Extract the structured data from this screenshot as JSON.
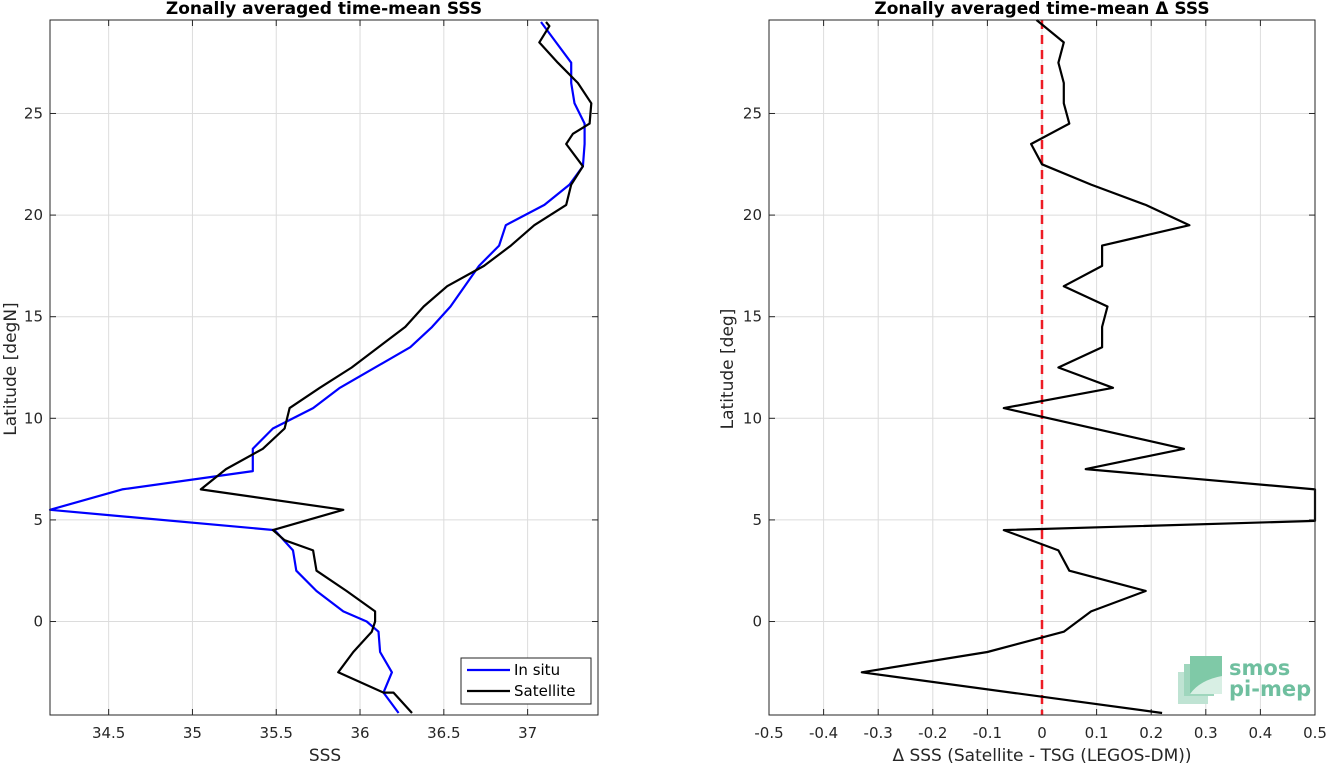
{
  "chart_data": [
    {
      "type": "line",
      "title": "Zonally averaged time-mean SSS",
      "xlabel": "SSS",
      "ylabel": "Latitude [degN]",
      "xlim": [
        34.15,
        37.42
      ],
      "ylim": [
        -4.6,
        29.6
      ],
      "xticks": [
        "34.5",
        "35",
        "35.5",
        "36",
        "36.5",
        "37"
      ],
      "xtick_values": [
        34.5,
        35,
        35.5,
        36,
        36.5,
        37
      ],
      "yticks": [
        "0",
        "5",
        "10",
        "15",
        "20",
        "25"
      ],
      "ytick_values": [
        0,
        5,
        10,
        15,
        20,
        25
      ],
      "grid": true,
      "legend_position": "bottom-right",
      "series": [
        {
          "name": "In situ",
          "color": "#0000ff",
          "points": [
            [
              36.23,
              -4.5
            ],
            [
              36.14,
              -3.5
            ],
            [
              36.19,
              -2.5
            ],
            [
              36.12,
              -1.5
            ],
            [
              36.11,
              -0.5
            ],
            [
              36.04,
              0
            ],
            [
              35.9,
              0.5
            ],
            [
              35.74,
              1.5
            ],
            [
              35.62,
              2.5
            ],
            [
              35.6,
              3.5
            ],
            [
              35.49,
              4.5
            ],
            [
              34.15,
              5.5
            ],
            [
              34.58,
              6.5
            ],
            [
              35.36,
              7.4
            ],
            [
              35.36,
              8.5
            ],
            [
              35.48,
              9.5
            ],
            [
              35.72,
              10.5
            ],
            [
              35.88,
              11.5
            ],
            [
              36.3,
              13.5
            ],
            [
              36.43,
              14.5
            ],
            [
              36.54,
              15.5
            ],
            [
              36.71,
              17.5
            ],
            [
              36.83,
              18.5
            ],
            [
              36.87,
              19.5
            ],
            [
              37.1,
              20.5
            ],
            [
              37.25,
              21.5
            ],
            [
              37.33,
              22.4
            ],
            [
              37.34,
              23.5
            ],
            [
              37.34,
              24.5
            ],
            [
              37.28,
              25.5
            ],
            [
              37.26,
              26.5
            ],
            [
              37.26,
              27.5
            ],
            [
              37.17,
              28.5
            ],
            [
              37.08,
              29.5
            ]
          ]
        },
        {
          "name": "Satellite",
          "color": "#000000",
          "points": [
            [
              36.31,
              -4.5
            ],
            [
              36.2,
              -3.5
            ],
            [
              36.14,
              -3.5
            ],
            [
              35.87,
              -2.5
            ],
            [
              35.96,
              -1.5
            ],
            [
              36.07,
              -0.5
            ],
            [
              36.09,
              0
            ],
            [
              36.09,
              0.5
            ],
            [
              35.92,
              1.5
            ],
            [
              35.74,
              2.5
            ],
            [
              35.72,
              3.5
            ],
            [
              35.55,
              4
            ],
            [
              35.48,
              4.5
            ],
            [
              35.9,
              5.5
            ],
            [
              35.05,
              6.5
            ],
            [
              35.2,
              7.5
            ],
            [
              35.42,
              8.5
            ],
            [
              35.55,
              9.5
            ],
            [
              35.58,
              10.5
            ],
            [
              35.76,
              11.5
            ],
            [
              35.95,
              12.5
            ],
            [
              36.27,
              14.5
            ],
            [
              36.38,
              15.5
            ],
            [
              36.52,
              16.5
            ],
            [
              36.74,
              17.5
            ],
            [
              36.9,
              18.5
            ],
            [
              37.04,
              19.5
            ],
            [
              37.23,
              20.5
            ],
            [
              37.26,
              21.5
            ],
            [
              37.33,
              22.4
            ],
            [
              37.23,
              23.5
            ],
            [
              37.27,
              24
            ],
            [
              37.37,
              24.5
            ],
            [
              37.38,
              25.5
            ],
            [
              37.3,
              26.5
            ],
            [
              37.18,
              27.5
            ],
            [
              37.07,
              28.5
            ],
            [
              37.13,
              29.3
            ],
            [
              37.11,
              29.5
            ]
          ]
        }
      ]
    },
    {
      "type": "line",
      "title": "Zonally averaged time-mean Δ SSS",
      "xlabel": "Δ SSS (Satellite - TSG (LEGOS-DM))",
      "ylabel": "Latitude [deg]",
      "xlim": [
        -0.5,
        0.5
      ],
      "ylim": [
        -4.6,
        29.6
      ],
      "xticks": [
        "-0.5",
        "-0.4",
        "-0.3",
        "-0.2",
        "-0.1",
        "0",
        "0.1",
        "0.2",
        "0.3",
        "0.4",
        "0.5"
      ],
      "xtick_values": [
        -0.5,
        -0.4,
        -0.3,
        -0.2,
        -0.1,
        0,
        0.1,
        0.2,
        0.3,
        0.4,
        0.5
      ],
      "yticks": [
        "0",
        "5",
        "10",
        "15",
        "20",
        "25"
      ],
      "ytick_values": [
        0,
        5,
        10,
        15,
        20,
        25
      ],
      "grid": true,
      "reference_line": {
        "x": 0,
        "color": "#ee1c25",
        "style": "dashed"
      },
      "series": [
        {
          "color": "#000000",
          "points": [
            [
              0.22,
              -4.5
            ],
            [
              -0.33,
              -2.5
            ],
            [
              -0.1,
              -1.5
            ],
            [
              0.04,
              -0.5
            ],
            [
              0.09,
              0.5
            ],
            [
              0.19,
              1.5
            ],
            [
              0.05,
              2.5
            ],
            [
              0.03,
              3.5
            ],
            [
              -0.07,
              4.5
            ],
            [
              0.5,
              4.95
            ],
            [
              0.5,
              6.5
            ],
            [
              0.08,
              7.5
            ],
            [
              0.26,
              8.5
            ],
            [
              -0.07,
              10.5
            ],
            [
              0.13,
              11.5
            ],
            [
              0.03,
              12.5
            ],
            [
              0.11,
              13.5
            ],
            [
              0.11,
              14.5
            ],
            [
              0.12,
              15.5
            ],
            [
              0.04,
              16.5
            ],
            [
              0.11,
              17.5
            ],
            [
              0.11,
              18.5
            ],
            [
              0.27,
              19.5
            ],
            [
              0.19,
              20.5
            ],
            [
              0.09,
              21.5
            ],
            [
              0.0,
              22.5
            ],
            [
              -0.02,
              23.5
            ],
            [
              0.05,
              24.5
            ],
            [
              0.04,
              25.5
            ],
            [
              0.04,
              26.5
            ],
            [
              0.03,
              27.5
            ],
            [
              0.04,
              28.5
            ],
            [
              -0.01,
              29.6
            ]
          ]
        }
      ]
    }
  ],
  "logo": {
    "line1": "smos",
    "line2": "pi-mep",
    "color": "#6fbf9f"
  }
}
